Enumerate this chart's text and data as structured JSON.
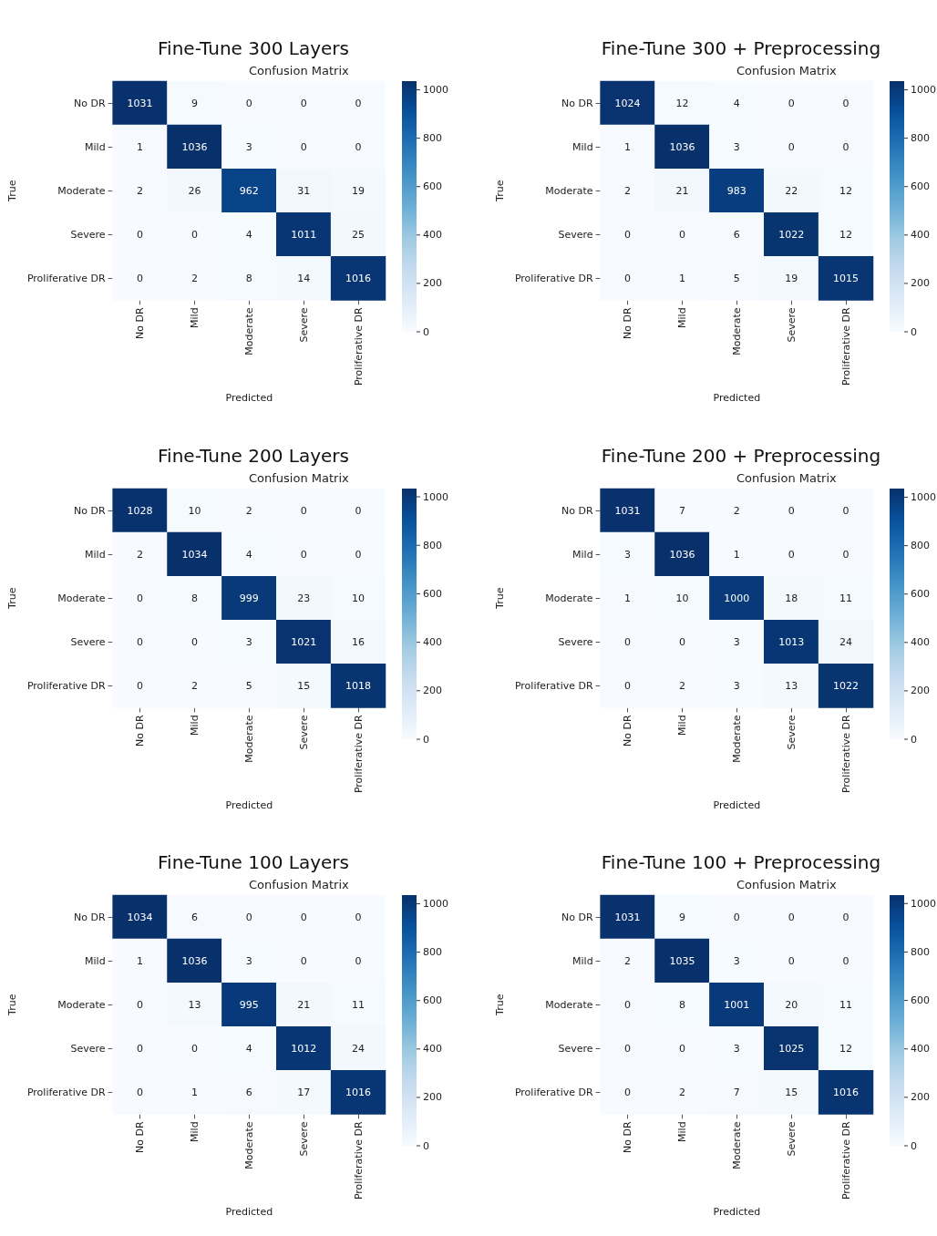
{
  "chart_data": [
    {
      "type": "heatmap",
      "title": "Fine-Tune 300 Layers",
      "subtitle": "Confusion Matrix",
      "xlabel": "Predicted",
      "ylabel": "True",
      "categories": [
        "No DR",
        "Mild",
        "Moderate",
        "Severe",
        "Proliferative DR"
      ],
      "y_categories": [
        "No DR",
        "Mild",
        "Moderate",
        "Severe",
        "Proliferative DR"
      ],
      "cells": [
        [
          1031,
          9,
          0,
          0,
          0
        ],
        [
          1,
          1036,
          3,
          0,
          0
        ],
        [
          2,
          26,
          962,
          31,
          19
        ],
        [
          0,
          0,
          4,
          1011,
          25
        ],
        [
          0,
          2,
          8,
          14,
          1016
        ]
      ],
      "clim": [
        0,
        1036
      ],
      "cticks": [
        0,
        200,
        400,
        600,
        800,
        1000
      ],
      "data_labels": true
    },
    {
      "type": "heatmap",
      "title": "Fine-Tune 300 + Preprocessing",
      "subtitle": "Confusion Matrix",
      "xlabel": "Predicted",
      "ylabel": "True",
      "categories": [
        "No DR",
        "Mild",
        "Moderate",
        "Severe",
        "Proliferative DR"
      ],
      "y_categories": [
        "No DR",
        "Mild",
        "Moderate",
        "Severe",
        "Proliferative DR"
      ],
      "cells": [
        [
          1024,
          12,
          4,
          0,
          0
        ],
        [
          1,
          1036,
          3,
          0,
          0
        ],
        [
          2,
          21,
          983,
          22,
          12
        ],
        [
          0,
          0,
          6,
          1022,
          12
        ],
        [
          0,
          1,
          5,
          19,
          1015
        ]
      ],
      "clim": [
        0,
        1036
      ],
      "cticks": [
        0,
        200,
        400,
        600,
        800,
        1000
      ],
      "data_labels": true
    },
    {
      "type": "heatmap",
      "title": "Fine-Tune 200 Layers",
      "subtitle": "Confusion Matrix",
      "xlabel": "Predicted",
      "ylabel": "True",
      "categories": [
        "No DR",
        "Mild",
        "Moderate",
        "Severe",
        "Proliferative DR"
      ],
      "y_categories": [
        "No DR",
        "Mild",
        "Moderate",
        "Severe",
        "Proliferative DR"
      ],
      "cells": [
        [
          1028,
          10,
          2,
          0,
          0
        ],
        [
          2,
          1034,
          4,
          0,
          0
        ],
        [
          0,
          8,
          999,
          23,
          10
        ],
        [
          0,
          0,
          3,
          1021,
          16
        ],
        [
          0,
          2,
          5,
          15,
          1018
        ]
      ],
      "clim": [
        0,
        1034
      ],
      "cticks": [
        0,
        200,
        400,
        600,
        800,
        1000
      ],
      "data_labels": true
    },
    {
      "type": "heatmap",
      "title": "Fine-Tune 200 + Preprocessing",
      "subtitle": "Confusion Matrix",
      "xlabel": "Predicted",
      "ylabel": "True",
      "categories": [
        "No DR",
        "Mild",
        "Moderate",
        "Severe",
        "Proliferative DR"
      ],
      "y_categories": [
        "No DR",
        "Mild",
        "Moderate",
        "Severe",
        "Proliferative DR"
      ],
      "cells": [
        [
          1031,
          7,
          2,
          0,
          0
        ],
        [
          3,
          1036,
          1,
          0,
          0
        ],
        [
          1,
          10,
          1000,
          18,
          11
        ],
        [
          0,
          0,
          3,
          1013,
          24
        ],
        [
          0,
          2,
          3,
          13,
          1022
        ]
      ],
      "clim": [
        0,
        1036
      ],
      "cticks": [
        0,
        200,
        400,
        600,
        800,
        1000
      ],
      "data_labels": true
    },
    {
      "type": "heatmap",
      "title": "Fine-Tune 100 Layers",
      "subtitle": "Confusion Matrix",
      "xlabel": "Predicted",
      "ylabel": "True",
      "categories": [
        "No DR",
        "Mild",
        "Moderate",
        "Severe",
        "Proliferative DR"
      ],
      "y_categories": [
        "No DR",
        "Mild",
        "Moderate",
        "Severe",
        "Proliferative DR"
      ],
      "cells": [
        [
          1034,
          6,
          0,
          0,
          0
        ],
        [
          1,
          1036,
          3,
          0,
          0
        ],
        [
          0,
          13,
          995,
          21,
          11
        ],
        [
          0,
          0,
          4,
          1012,
          24
        ],
        [
          0,
          1,
          6,
          17,
          1016
        ]
      ],
      "clim": [
        0,
        1036
      ],
      "cticks": [
        0,
        200,
        400,
        600,
        800,
        1000
      ],
      "data_labels": true
    },
    {
      "type": "heatmap",
      "title": "Fine-Tune 100 + Preprocessing",
      "subtitle": "Confusion Matrix",
      "xlabel": "Predicted",
      "ylabel": "True",
      "categories": [
        "No DR",
        "Mild",
        "Moderate",
        "Severe",
        "Proliferative DR"
      ],
      "y_categories": [
        "No DR",
        "Mild",
        "Moderate",
        "Severe",
        "Proliferative DR"
      ],
      "cells": [
        [
          1031,
          9,
          0,
          0,
          0
        ],
        [
          2,
          1035,
          3,
          0,
          0
        ],
        [
          0,
          8,
          1001,
          20,
          11
        ],
        [
          0,
          0,
          3,
          1025,
          12
        ],
        [
          0,
          2,
          7,
          15,
          1016
        ]
      ],
      "clim": [
        0,
        1035
      ],
      "cticks": [
        0,
        200,
        400,
        600,
        800,
        1000
      ],
      "data_labels": true
    }
  ]
}
